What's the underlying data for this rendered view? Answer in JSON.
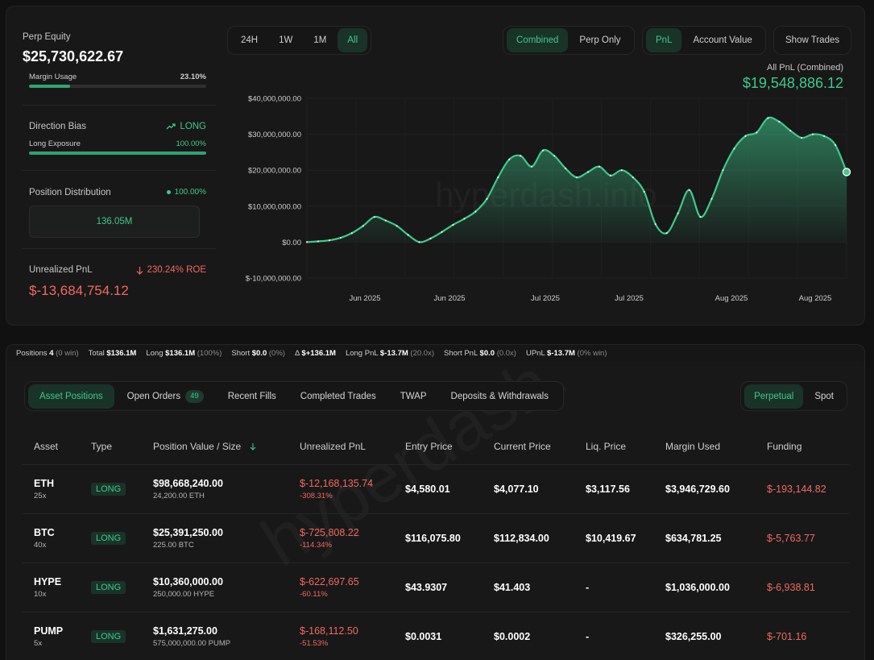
{
  "summary": {
    "perp_equity_label": "Perp Equity",
    "perp_equity_value": "$25,730,622.67",
    "margin_usage_label": "Margin Usage",
    "margin_usage_value": "23.10%",
    "margin_usage_fraction": 0.231,
    "direction_bias_label": "Direction Bias",
    "direction_bias_value": "LONG",
    "long_exposure_label": "Long Exposure",
    "long_exposure_value": "100.00%",
    "long_exposure_fraction": 1.0,
    "position_distribution_label": "Position Distribution",
    "position_distribution_pct": "100.00%",
    "position_distribution_box": "136.05M",
    "unrealized_pnl_label": "Unrealized PnL",
    "unrealized_pnl_roe": "230.24% ROE",
    "unrealized_pnl_value": "$-13,684,754.12"
  },
  "time_range": [
    "24H",
    "1W",
    "1M",
    "All"
  ],
  "time_range_active": "All",
  "mode_toggle": [
    "Combined",
    "Perp Only"
  ],
  "mode_active": "Combined",
  "metric_toggle": [
    "PnL",
    "Account Value"
  ],
  "metric_active": "PnL",
  "show_trades_label": "Show Trades",
  "pnl_header": {
    "title": "All PnL (Combined)",
    "value": "$19,548,886.12"
  },
  "watermark": "hyperdash.info",
  "chart_data": {
    "type": "area",
    "yticks": [
      "$40,000,000.00",
      "$30,000,000.00",
      "$20,000,000.00",
      "$10,000,000.00",
      "$0.00",
      "$-10,000,000.00"
    ],
    "ylim": [
      -10000000,
      40000000
    ],
    "xticks": [
      "Jun 2025",
      "Jun 2025",
      "Jul 2025",
      "Jul 2025",
      "Aug 2025",
      "Aug 2025"
    ],
    "series": [
      {
        "values": [
          0,
          200000,
          500000,
          1200000,
          2500000,
          4500000,
          7000000,
          6000000,
          4500000,
          2000000,
          0,
          1000000,
          2800000,
          4800000,
          6500000,
          8500000,
          12000000,
          18000000,
          23000000,
          24000000,
          21000000,
          25500000,
          24000000,
          20500000,
          18000000,
          19500000,
          21000000,
          18500000,
          20000000,
          18000000,
          14000000,
          5000000,
          2500000,
          8000000,
          14500000,
          7000000,
          12000000,
          20000000,
          26000000,
          29500000,
          30500000,
          34500000,
          33500000,
          31000000,
          29000000,
          30000000,
          29500000,
          27000000,
          19500000
        ]
      }
    ]
  },
  "stats_bar": {
    "positions_label": "Positions",
    "positions_value": "4",
    "positions_win": "(0 win)",
    "total_label": "Total",
    "total_value": "$136.1M",
    "long_label": "Long",
    "long_value": "$136.1M",
    "long_pct": "(100%)",
    "short_label": "Short",
    "short_value": "$0.0",
    "short_pct": "(0%)",
    "delta_label": "Δ",
    "delta_value": "$+136.1M",
    "long_pnl_label": "Long PnL",
    "long_pnl_value": "$-13.7M",
    "long_pnl_x": "(20.0x)",
    "short_pnl_label": "Short PnL",
    "short_pnl_value": "$0.0",
    "short_pnl_x": "(0.0x)",
    "upnl_label": "UPnL",
    "upnl_value": "$-13.7M",
    "upnl_win": "(0% win)"
  },
  "tabs": {
    "asset_positions": "Asset Positions",
    "open_orders": "Open Orders",
    "open_orders_count": "49",
    "recent_fills": "Recent Fills",
    "completed_trades": "Completed Trades",
    "twap": "TWAP",
    "deposits_withdrawals": "Deposits & Withdrawals"
  },
  "market_tabs": {
    "perpetual": "Perpetual",
    "spot": "Spot"
  },
  "table": {
    "headers": {
      "asset": "Asset",
      "type": "Type",
      "position_value": "Position Value / Size",
      "unrealized_pnl": "Unrealized PnL",
      "entry_price": "Entry Price",
      "current_price": "Current Price",
      "liq_price": "Liq. Price",
      "margin_used": "Margin Used",
      "funding": "Funding"
    },
    "rows": [
      {
        "asset": "ETH",
        "leverage": "25x",
        "type": "LONG",
        "value": "$98,668,240.00",
        "size": "24,200.00 ETH",
        "pnl": "$-12,168,135.74",
        "pnl_pct": "-308.31%",
        "entry": "$4,580.01",
        "current": "$4,077.10",
        "liq": "$3,117.56",
        "margin": "$3,946,729.60",
        "funding": "$-193,144.82"
      },
      {
        "asset": "BTC",
        "leverage": "40x",
        "type": "LONG",
        "value": "$25,391,250.00",
        "size": "225.00 BTC",
        "pnl": "$-725,808.22",
        "pnl_pct": "-114.34%",
        "entry": "$116,075.80",
        "current": "$112,834.00",
        "liq": "$10,419.67",
        "margin": "$634,781.25",
        "funding": "$-5,763.77"
      },
      {
        "asset": "HYPE",
        "leverage": "10x",
        "type": "LONG",
        "value": "$10,360,000.00",
        "size": "250,000.00 HYPE",
        "pnl": "$-622,697.65",
        "pnl_pct": "-60.11%",
        "entry": "$43.9307",
        "current": "$41.403",
        "liq": "-",
        "margin": "$1,036,000.00",
        "funding": "$-6,938.81"
      },
      {
        "asset": "PUMP",
        "leverage": "5x",
        "type": "LONG",
        "value": "$1,631,275.00",
        "size": "575,000,000.00 PUMP",
        "pnl": "$-168,112.50",
        "pnl_pct": "-51.53%",
        "entry": "$0.0031",
        "current": "$0.0002",
        "liq": "-",
        "margin": "$326,255.00",
        "funding": "$-701.16"
      }
    ]
  },
  "colors": {
    "accent": "#3ec98d",
    "negative": "#f06a5f",
    "background": "#111111",
    "panel": "#181818"
  }
}
